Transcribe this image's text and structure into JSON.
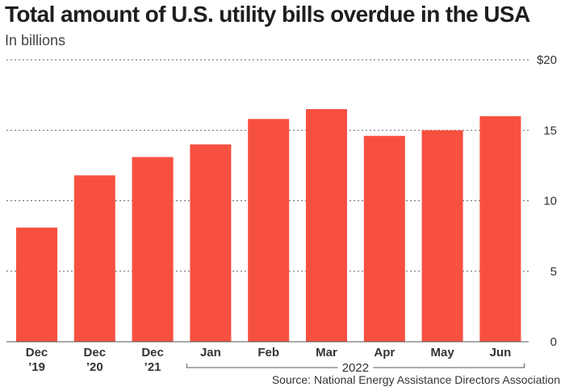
{
  "header": {
    "title": "Total amount of U.S. utility bills overdue in the USA",
    "subtitle": "In billions"
  },
  "footer": {
    "source": "Source: National Energy Assistance Directors Association"
  },
  "chart_data": {
    "type": "bar",
    "title": "Total amount of U.S. utility bills overdue in the USA",
    "subtitle": "In billions",
    "categories": [
      [
        "Dec",
        "’19"
      ],
      [
        "Dec",
        "’20"
      ],
      [
        "Dec",
        "’21"
      ],
      [
        "Jan"
      ],
      [
        "Feb"
      ],
      [
        "Mar"
      ],
      [
        "Apr"
      ],
      [
        "May"
      ],
      [
        "Jun"
      ]
    ],
    "group_label": {
      "text": "2022",
      "from_index": 3,
      "to_index": 8
    },
    "values": [
      8.1,
      11.8,
      13.1,
      14.0,
      15.8,
      16.5,
      14.6,
      15.0,
      16.0
    ],
    "ylim": [
      0,
      20
    ],
    "yticks": [
      {
        "value": 0,
        "label": "0"
      },
      {
        "value": 5,
        "label": "5"
      },
      {
        "value": 10,
        "label": "10"
      },
      {
        "value": 15,
        "label": "15"
      },
      {
        "value": 20,
        "label": "$20"
      }
    ],
    "y_axis_side": "right",
    "grid": true,
    "bar_color": "#f75040"
  }
}
